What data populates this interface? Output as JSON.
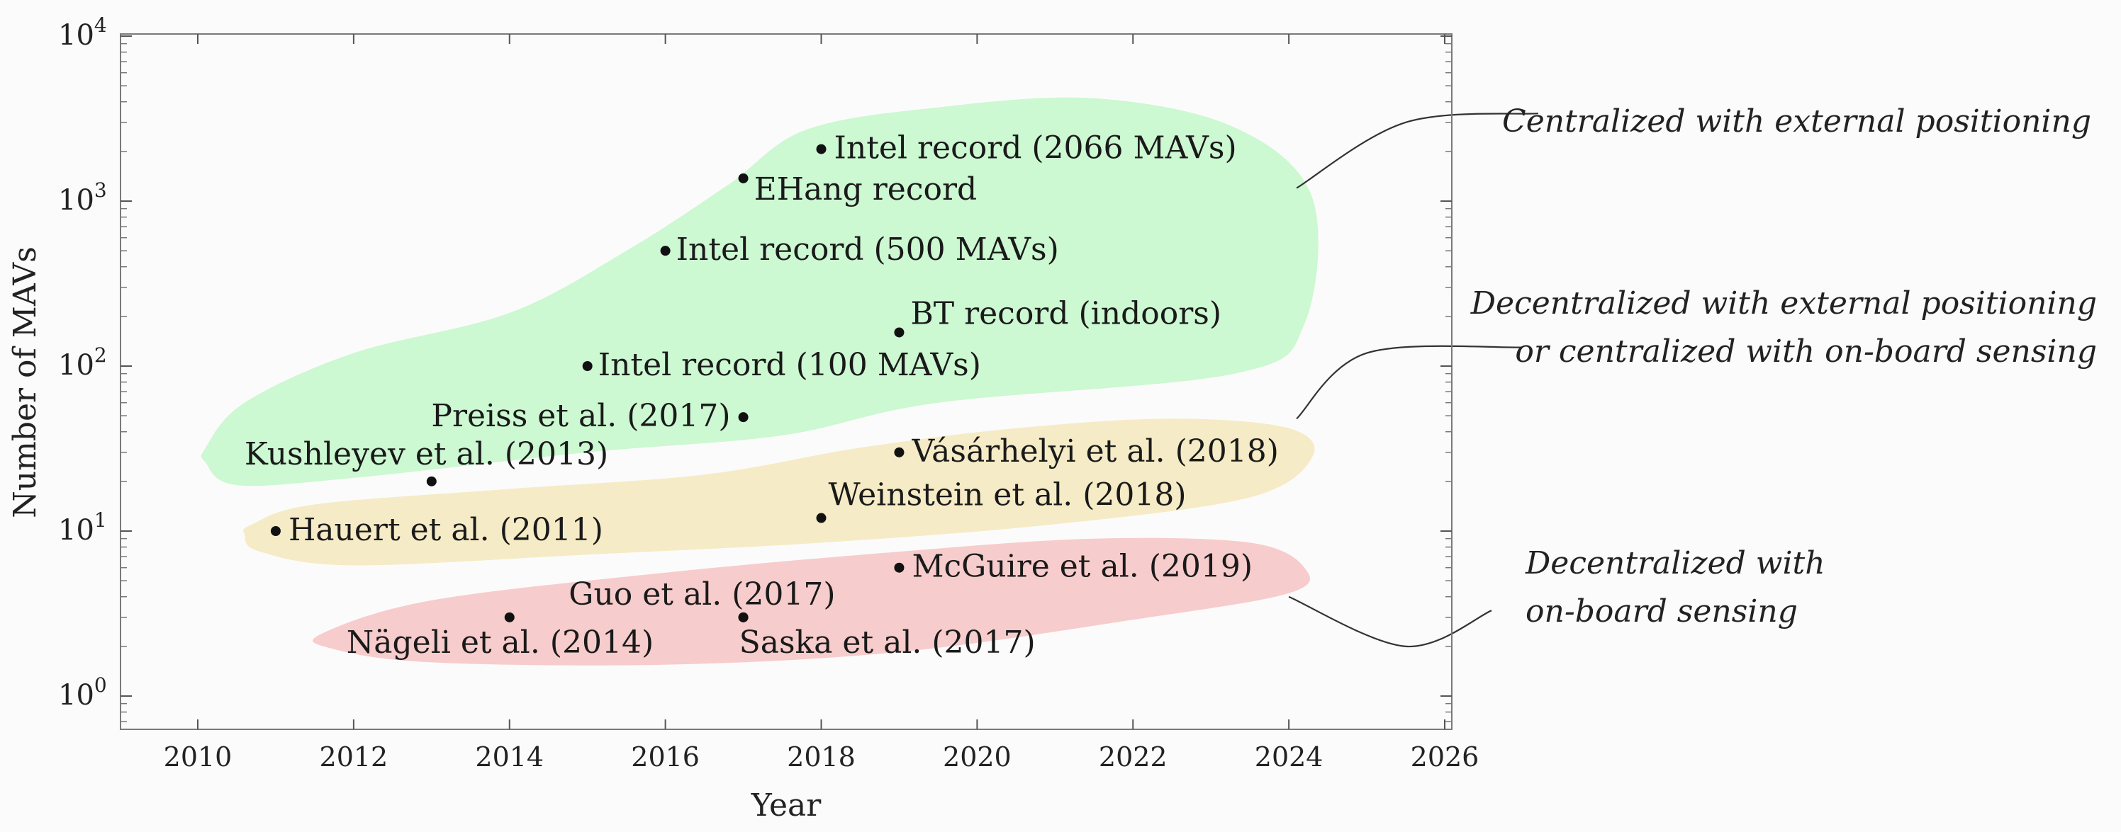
{
  "chart_data": {
    "type": "scatter",
    "title": "",
    "xlabel": "Year",
    "ylabel": "Number of MAVs",
    "xlim": [
      2009,
      2026
    ],
    "ylim": [
      0.6,
      10000
    ],
    "yscale": "log",
    "xticks": [
      2010,
      2012,
      2014,
      2016,
      2018,
      2020,
      2022,
      2024,
      2026
    ],
    "yticks": [
      {
        "value": 1,
        "base": "10",
        "exp": "0"
      },
      {
        "value": 10,
        "base": "10",
        "exp": "1"
      },
      {
        "value": 100,
        "base": "10",
        "exp": "2"
      },
      {
        "value": 1000,
        "base": "10",
        "exp": "3"
      },
      {
        "value": 10000,
        "base": "10",
        "exp": "4"
      }
    ],
    "regions": [
      {
        "name": "centralized-external",
        "color": "#ccf8d2",
        "outline": [
          [
            2010.1,
            32
          ],
          [
            2010.6,
            60
          ],
          [
            2012,
            120
          ],
          [
            2014,
            210
          ],
          [
            2015.5,
            500
          ],
          [
            2016.8,
            1250
          ],
          [
            2017.8,
            2700
          ],
          [
            2019.5,
            3700
          ],
          [
            2021.5,
            4200
          ],
          [
            2023.3,
            2800
          ],
          [
            2024.3,
            1050
          ],
          [
            2024.2,
            180
          ],
          [
            2023.3,
            90
          ],
          [
            2019.5,
            60
          ],
          [
            2017.5,
            38
          ],
          [
            2015,
            30
          ],
          [
            2012,
            21
          ],
          [
            2010.5,
            19
          ],
          [
            2010.1,
            26
          ]
        ],
        "label_lines": [
          "Centralized with external positioning"
        ],
        "callout": [
          [
            2024.1,
            1200
          ],
          [
            2025.5,
            3000
          ],
          [
            2027.2,
            3400
          ]
        ]
      },
      {
        "name": "decentralized-external",
        "color": "#f5ebc6",
        "outline": [
          [
            2010.7,
            11
          ],
          [
            2011.5,
            14.5
          ],
          [
            2014,
            18
          ],
          [
            2016.5,
            22
          ],
          [
            2018.5,
            32
          ],
          [
            2020.5,
            42
          ],
          [
            2022.5,
            48
          ],
          [
            2024,
            42
          ],
          [
            2024.3,
            28
          ],
          [
            2023.5,
            16
          ],
          [
            2021,
            11
          ],
          [
            2018,
            8.5
          ],
          [
            2015,
            7.2
          ],
          [
            2012,
            6.2
          ],
          [
            2010.8,
            7.5
          ],
          [
            2010.6,
            9.5
          ]
        ],
        "label_lines": [
          "Decentralized with external positioning",
          "or centralized with on-board sensing"
        ],
        "callout": [
          [
            2024.1,
            48
          ],
          [
            2025,
            120
          ],
          [
            2027.0,
            130
          ]
        ]
      },
      {
        "name": "decentralized-onboard",
        "color": "#f7cccc",
        "outline": [
          [
            2011.6,
            2.4
          ],
          [
            2013,
            3.8
          ],
          [
            2016,
            5.6
          ],
          [
            2019,
            7.5
          ],
          [
            2021.5,
            9.0
          ],
          [
            2023.5,
            8.5
          ],
          [
            2024.2,
            6.0
          ],
          [
            2024.0,
            4.2
          ],
          [
            2022,
            2.9
          ],
          [
            2019,
            1.85
          ],
          [
            2016,
            1.55
          ],
          [
            2013,
            1.6
          ],
          [
            2011.7,
            1.95
          ]
        ],
        "label_lines": [
          "Decentralized with",
          "on-board sensing"
        ],
        "callout": [
          [
            2024.0,
            4.0
          ],
          [
            2025.5,
            2.0
          ],
          [
            2026.6,
            3.3
          ]
        ]
      }
    ],
    "points": [
      {
        "year": 2018,
        "value": 2066,
        "label": "Intel record (2066 MAVs)"
      },
      {
        "year": 2017,
        "value": 1374,
        "label": "EHang record"
      },
      {
        "year": 2016,
        "value": 500,
        "label": "Intel record (500 MAVs)"
      },
      {
        "year": 2019,
        "value": 160,
        "label": "BT record (indoors)"
      },
      {
        "year": 2015,
        "value": 100,
        "label": "Intel record (100 MAVs)"
      },
      {
        "year": 2017,
        "value": 49,
        "label": "Preiss et al. (2017)"
      },
      {
        "year": 2013,
        "value": 20,
        "label": "Kushleyev et al. (2013)"
      },
      {
        "year": 2019,
        "value": 30,
        "label": "Vásárhelyi et al. (2018)"
      },
      {
        "year": 2018,
        "value": 12,
        "label": "Weinstein et al. (2018)"
      },
      {
        "year": 2011,
        "value": 10,
        "label": "Hauert et al. (2011)"
      },
      {
        "year": 2019,
        "value": 6,
        "label": "McGuire et al. (2019)"
      },
      {
        "year": 2017,
        "value": 3,
        "label": "Guo et al. (2017)"
      },
      {
        "year": 2014,
        "value": 3,
        "label": "Nägeli et al. (2014)"
      },
      {
        "year": 2017,
        "value": 3,
        "label": "Saska et al. (2017)"
      }
    ]
  }
}
